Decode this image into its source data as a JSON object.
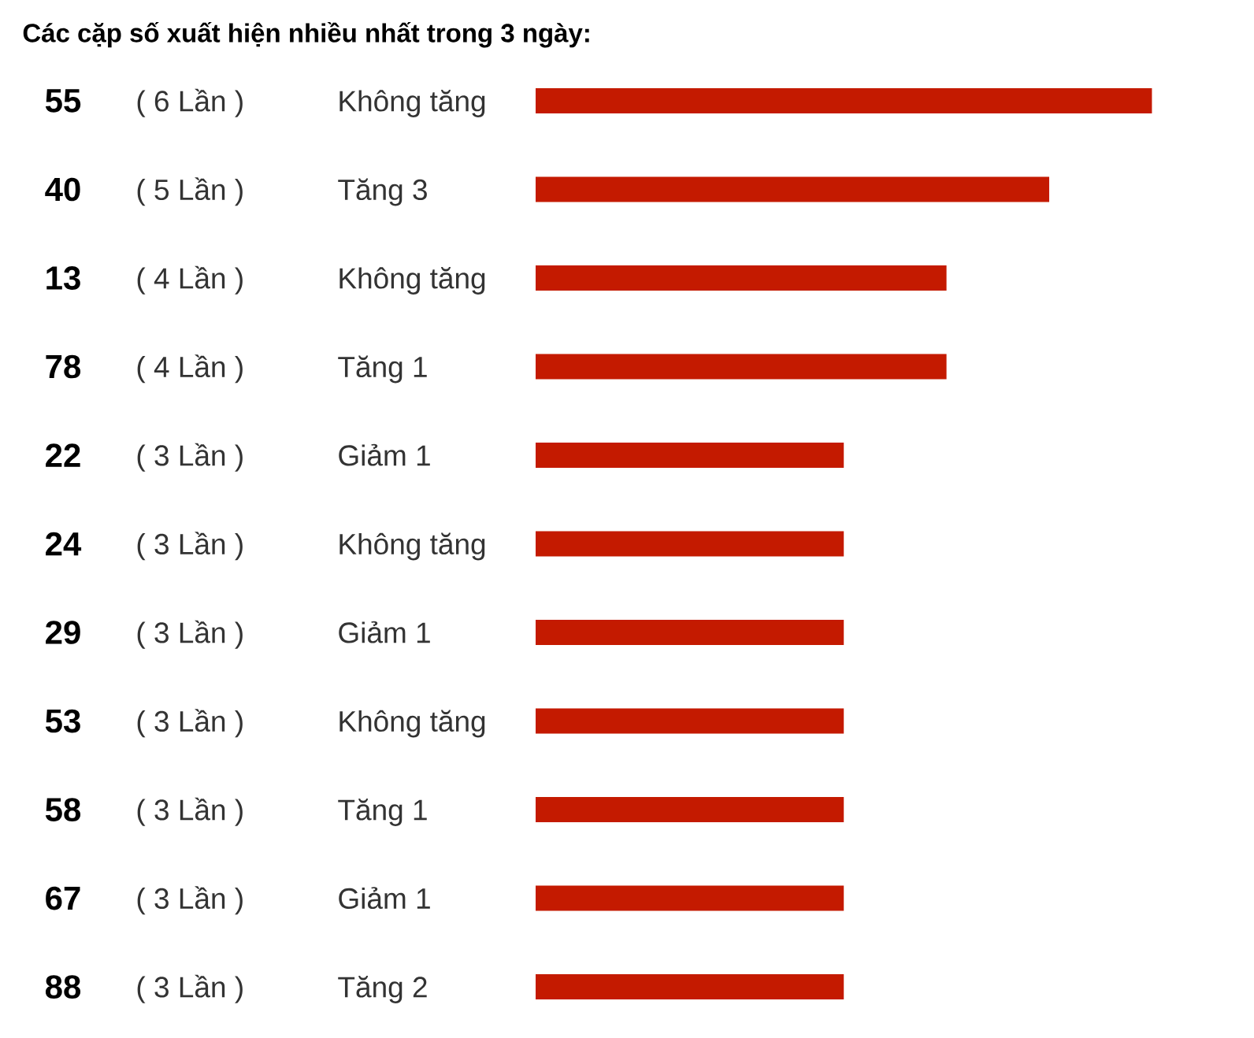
{
  "chart_data": {
    "type": "bar",
    "orientation": "horizontal",
    "title": "Các cặp số xuất hiện nhiều nhất trong 3 ngày:",
    "categories": [
      "55",
      "40",
      "13",
      "78",
      "22",
      "24",
      "29",
      "53",
      "58",
      "67",
      "88"
    ],
    "values": [
      6,
      5,
      4,
      4,
      3,
      3,
      3,
      3,
      3,
      3,
      3
    ],
    "value_labels": [
      "( 6 Lần )",
      "( 5 Lần )",
      "( 4 Lần )",
      "( 4 Lần )",
      "( 3 Lần )",
      "( 3 Lần )",
      "( 3 Lần )",
      "( 3 Lần )",
      "( 3 Lần )",
      "( 3 Lần )",
      "( 3 Lần )"
    ],
    "annotations": [
      "Không tăng",
      "Tăng 3",
      "Không tăng",
      "Tăng 1",
      "Giảm 1",
      "Không tăng",
      "Giảm 1",
      "Không tăng",
      "Tăng 1",
      "Giảm 1",
      "Tăng 2"
    ],
    "color": "#c41a00",
    "tick_labels": "y"
  }
}
